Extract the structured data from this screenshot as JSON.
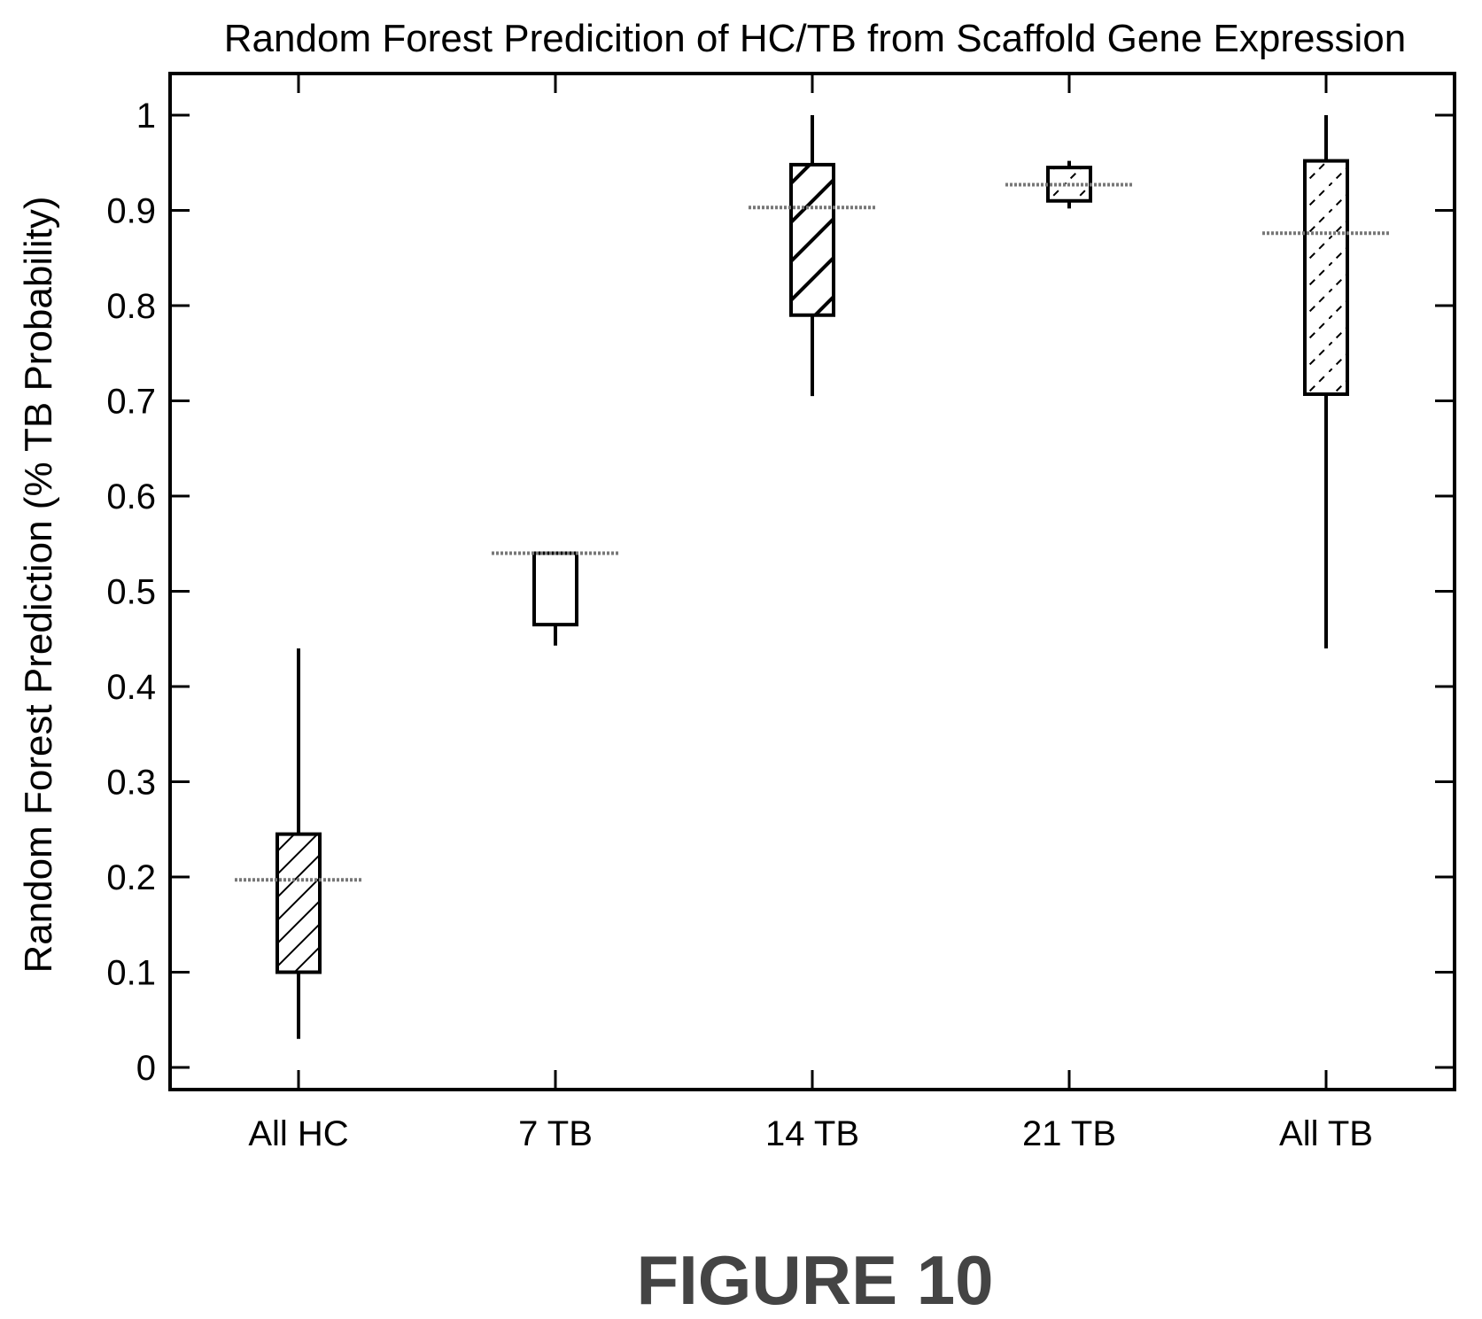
{
  "chart_data": {
    "type": "box",
    "title": "Random Forest Predicition of HC/TB from Scaffold Gene Expression",
    "xlabel": "",
    "ylabel": "Random Forest Prediction (% TB Probability)",
    "ylim": [
      -0.02,
      1.04
    ],
    "yticks": [
      "0",
      "0.1",
      "0.2",
      "0.3",
      "0.4",
      "0.5",
      "0.6",
      "0.7",
      "0.8",
      "0.9",
      "1"
    ],
    "grid": false,
    "legend": "none",
    "categories": [
      "All HC",
      "7 TB",
      "14 TB",
      "21 TB",
      "All TB"
    ],
    "boxes": [
      {
        "category": "All HC",
        "whisker_low": 0.03,
        "q1": 0.1,
        "median": 0.197,
        "q3": 0.245,
        "whisker_high": 0.44,
        "hatch": "diagonal"
      },
      {
        "category": "7 TB",
        "whisker_low": 0.443,
        "q1": 0.465,
        "median": 0.54,
        "q3": 0.54,
        "whisker_high": 0.54,
        "hatch": "none"
      },
      {
        "category": "14 TB",
        "whisker_low": 0.705,
        "q1": 0.79,
        "median": 0.903,
        "q3": 0.948,
        "whisker_high": 1.0,
        "hatch": "diagonal-bold"
      },
      {
        "category": "21 TB",
        "whisker_low": 0.902,
        "q1": 0.91,
        "median": 0.927,
        "q3": 0.945,
        "whisker_high": 0.952,
        "hatch": "dashed"
      },
      {
        "category": "All TB",
        "whisker_low": 0.44,
        "q1": 0.707,
        "median": 0.876,
        "q3": 0.952,
        "whisker_high": 1.0,
        "hatch": "dashed"
      }
    ]
  },
  "figure_label": "FIGURE 10",
  "colors": {
    "line": "#000000",
    "median": "#777777",
    "figure_label": "#444444"
  }
}
